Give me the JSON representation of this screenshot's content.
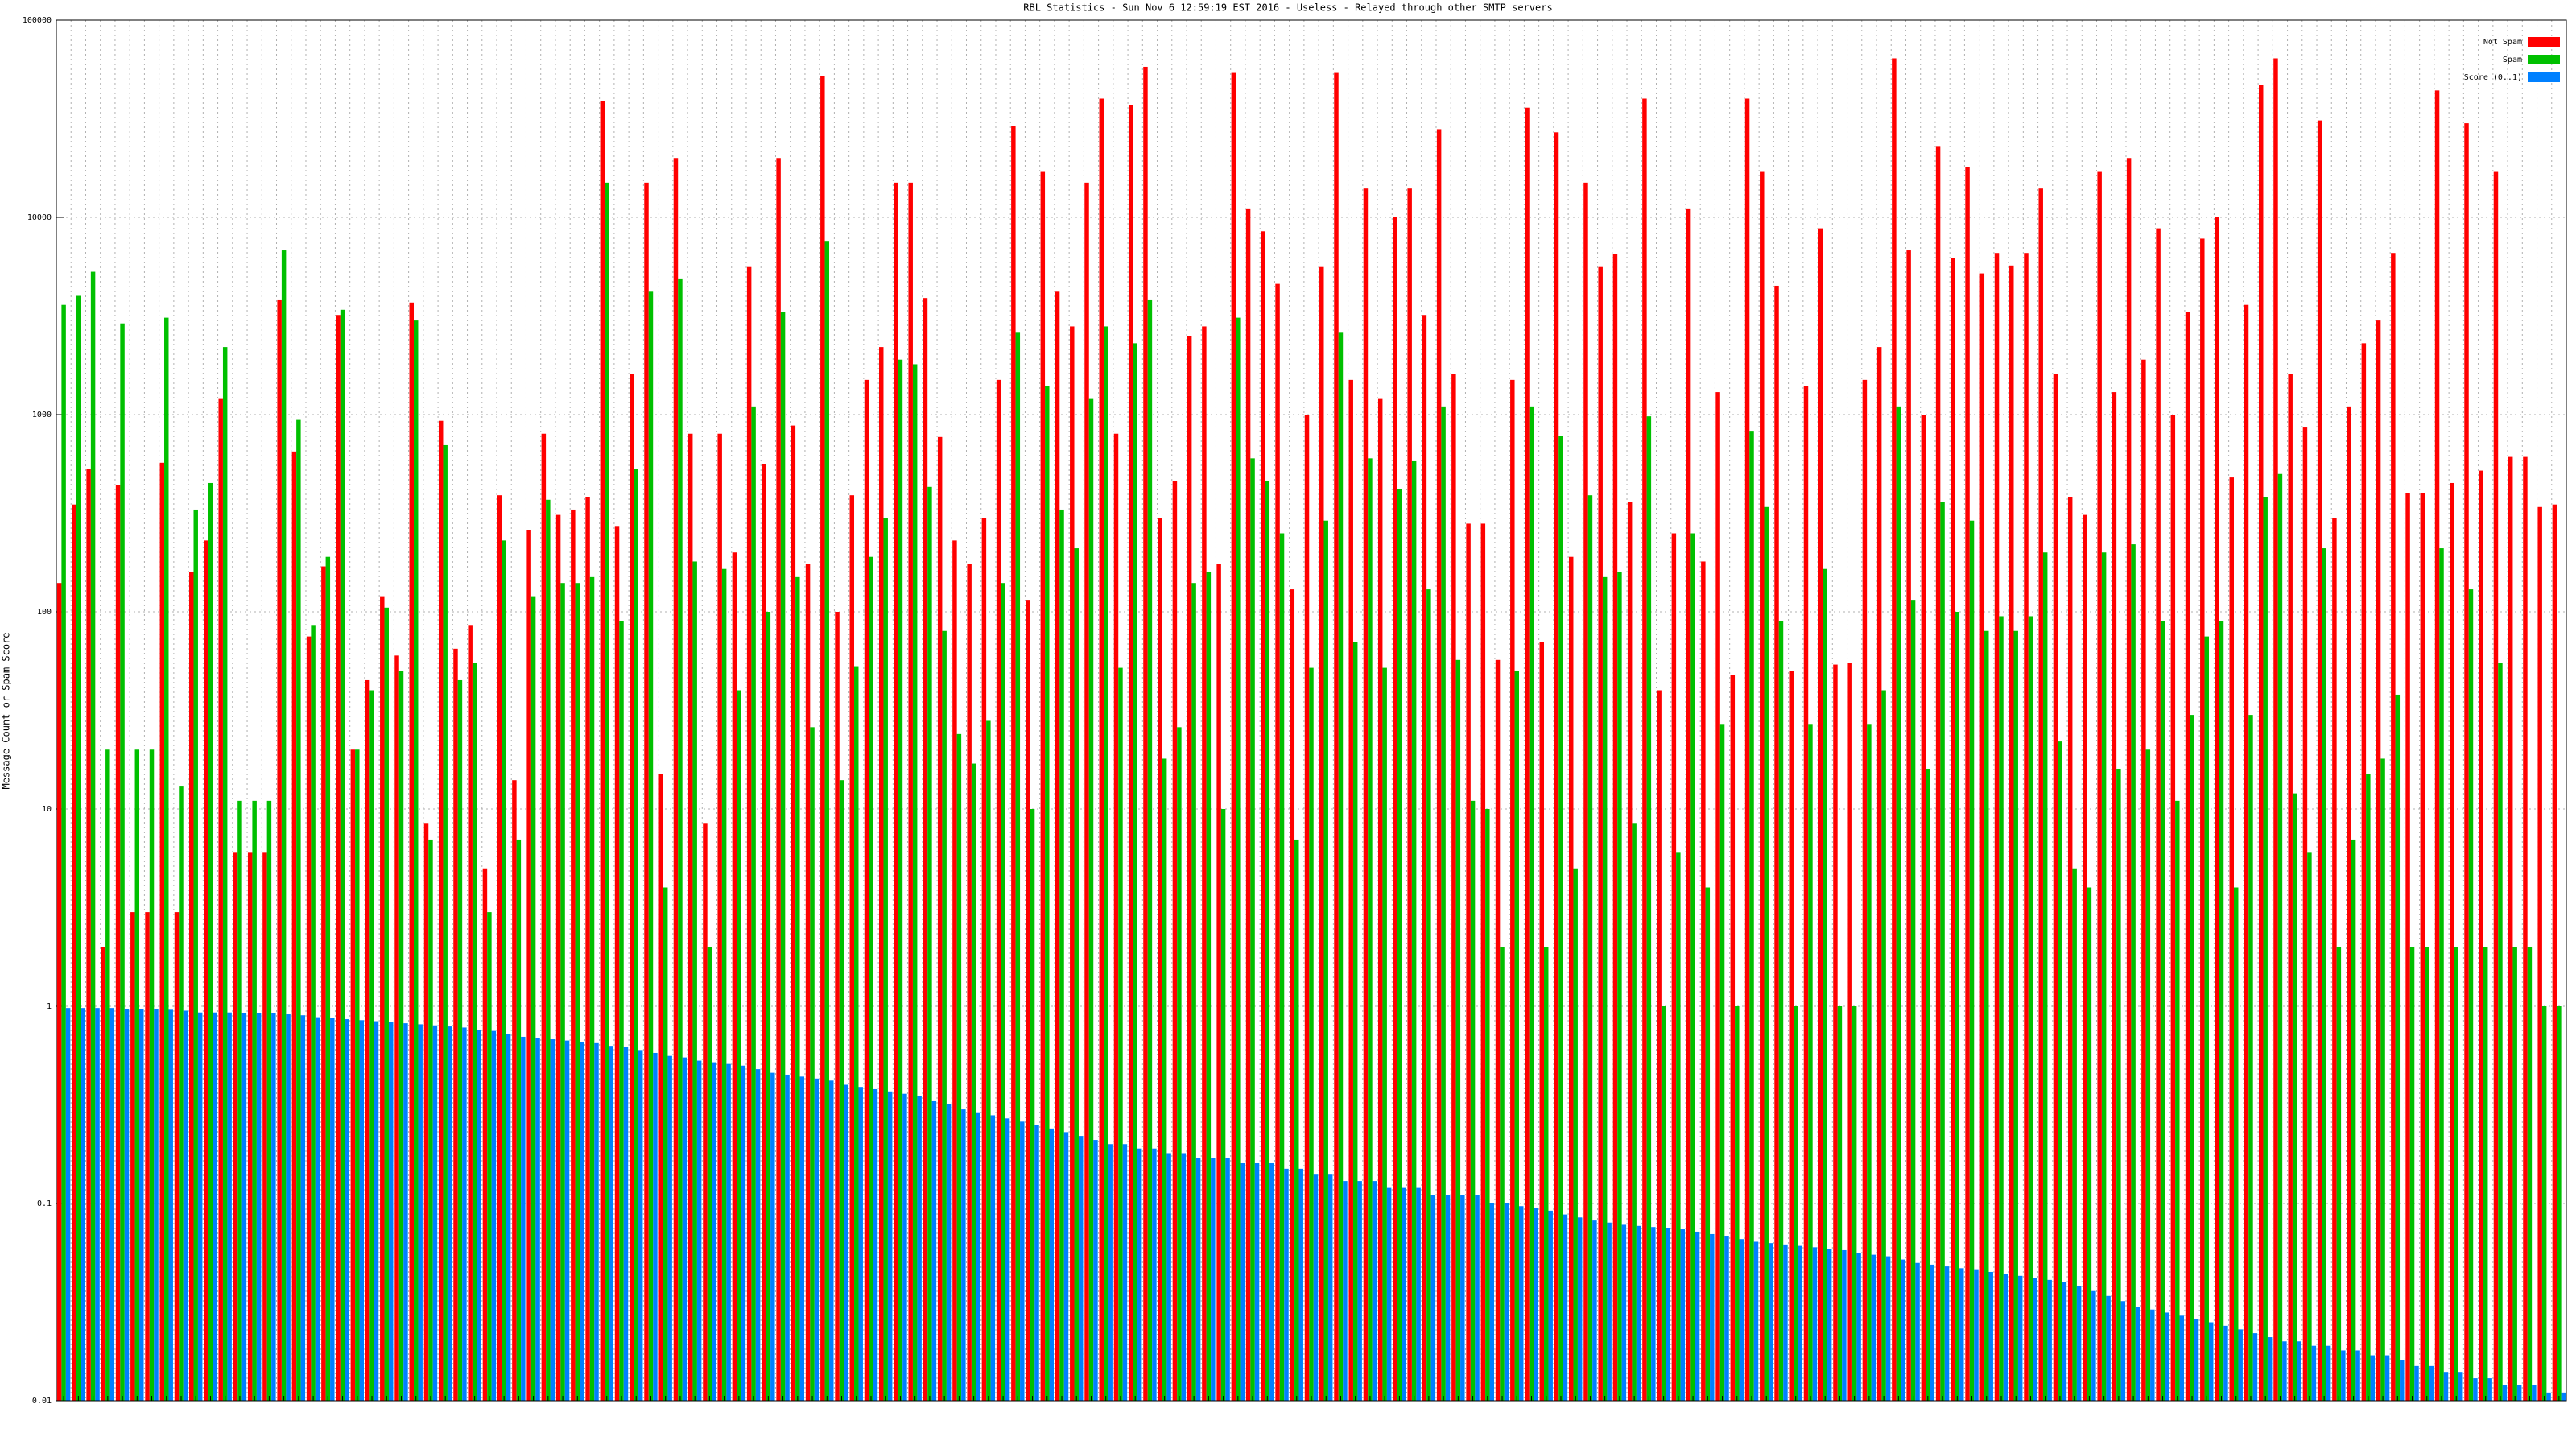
{
  "chart_data": {
    "type": "bar",
    "title": "RBL Statistics - Sun Nov  6 12:59:19 EST 2016 - Useless - Relayed through other SMTP servers",
    "y_label": "Message Count or Spam Score",
    "log_scale": true,
    "grid": true,
    "legend": "upper right",
    "ylim": [
      0.01,
      100000
    ],
    "yticks": [
      0.01,
      0.1,
      1,
      10,
      100,
      1000,
      10000,
      100000
    ],
    "categories": [
      null,
      null,
      null,
      null,
      null,
      null,
      null,
      null,
      null,
      null,
      null,
      null,
      null,
      null,
      null,
      null,
      null,
      null,
      null,
      null,
      null,
      null,
      null,
      null,
      null,
      null,
      null,
      null,
      null,
      null,
      null,
      null,
      null,
      null,
      null,
      null,
      null,
      null,
      null,
      null,
      null,
      null,
      null,
      null,
      null,
      null,
      null,
      null,
      null,
      null,
      null,
      null,
      null,
      null,
      null,
      null,
      null,
      null,
      null,
      null,
      null,
      null,
      null,
      null,
      null,
      null,
      null,
      null,
      null,
      null,
      null,
      null,
      null,
      null,
      null,
      null,
      null,
      null,
      null,
      null,
      null,
      null,
      null,
      null,
      null,
      null,
      null,
      null,
      null,
      null,
      null,
      null,
      null,
      null,
      null,
      null,
      null,
      null,
      null,
      null,
      null,
      null,
      null,
      null,
      null,
      null,
      null,
      null,
      null,
      null,
      null,
      null,
      null,
      null,
      null,
      null,
      null,
      null,
      null,
      null,
      null,
      null,
      null,
      null,
      null,
      null,
      null,
      null,
      null,
      null,
      null,
      null,
      null,
      null,
      null,
      null,
      null,
      null,
      null,
      null,
      null,
      null,
      null,
      null,
      null,
      null,
      null,
      null,
      null,
      null,
      null,
      null,
      null,
      null,
      null,
      null,
      null,
      null,
      null,
      null,
      null,
      null,
      null,
      null,
      null,
      null,
      null,
      null,
      null,
      null,
      null
    ],
    "series": [
      {
        "name": "Not Spam",
        "color": "#ff0000",
        "values": [
          140,
          350,
          530,
          2,
          440,
          3,
          3,
          570,
          3,
          160,
          230,
          1200,
          6,
          6,
          6,
          3800,
          650,
          75,
          170,
          3200,
          20,
          45,
          120,
          60,
          3700,
          8.5,
          930,
          65,
          85,
          5,
          390,
          14,
          260,
          800,
          310,
          330,
          380,
          39000,
          270,
          1600,
          15000,
          15,
          20000,
          800,
          8.5,
          800,
          200,
          5600,
          560,
          20000,
          880,
          175,
          52000,
          100,
          390,
          1500,
          2200,
          15000,
          15000,
          3900,
          770,
          230,
          175,
          300,
          1500,
          29000,
          115,
          17000,
          4200,
          2800,
          15000,
          40000,
          800,
          37000,
          58000,
          300,
          460,
          2500,
          2800,
          175,
          54000,
          11000,
          8500,
          4600,
          130,
          1000,
          5600,
          54000,
          1500,
          14000,
          1200,
          10000,
          14000,
          3200,
          28000,
          1600,
          280,
          280,
          57,
          1500,
          36000,
          70,
          27000,
          190,
          15000,
          5600,
          6500,
          360,
          40000,
          40,
          250,
          11000,
          180,
          1300,
          48,
          40000,
          17000,
          4500,
          50,
          1400,
          8800,
          54,
          55,
          1500,
          2200,
          64000,
          6800,
          1000,
          23000,
          6200,
          18000,
          5200,
          6600,
          5700,
          6600,
          14000,
          1600,
          380,
          310,
          17000,
          1300,
          20000,
          1900,
          8800,
          1000,
          3300,
          7800,
          10000,
          480,
          3600,
          47000,
          64000,
          1600,
          860,
          31000,
          300,
          1100,
          2300,
          3000,
          6600,
          400,
          400,
          44000,
          450,
          30000,
          520,
          17000,
          610,
          610,
          340,
          350
        ]
      },
      {
        "name": "Spam",
        "color": "#00c000",
        "values": [
          3600,
          4000,
          5300,
          20,
          2900,
          20,
          20,
          3100,
          13,
          330,
          450,
          2200,
          11,
          11,
          11,
          6800,
          940,
          85,
          190,
          3400,
          20,
          40,
          105,
          50,
          3000,
          7,
          700,
          45,
          55,
          3,
          230,
          7,
          120,
          370,
          140,
          140,
          150,
          15000,
          90,
          530,
          4200,
          4,
          4900,
          180,
          2,
          165,
          40,
          1100,
          100,
          3300,
          150,
          26,
          7600,
          14,
          53,
          190,
          300,
          1900,
          1800,
          430,
          80,
          24,
          17,
          28,
          140,
          2600,
          10,
          1400,
          330,
          210,
          1200,
          2800,
          52,
          2300,
          3800,
          18,
          26,
          140,
          160,
          10,
          3100,
          600,
          460,
          250,
          7,
          52,
          290,
          2600,
          70,
          600,
          52,
          420,
          580,
          130,
          1100,
          57,
          11,
          10,
          2,
          50,
          1100,
          2,
          780,
          5,
          390,
          150,
          160,
          8.5,
          980,
          1,
          6,
          250,
          4,
          27,
          1,
          820,
          340,
          90,
          1,
          27,
          165,
          1,
          1,
          27,
          40,
          1100,
          115,
          16,
          360,
          100,
          290,
          80,
          95,
          80,
          95,
          200,
          22,
          5,
          4,
          200,
          16,
          220,
          20,
          90,
          11,
          30,
          75,
          90,
          4,
          30,
          380,
          500,
          12,
          6,
          210,
          2,
          7,
          15,
          18,
          38,
          2,
          2,
          210,
          2,
          130,
          2,
          55,
          2,
          2,
          1,
          1
        ]
      },
      {
        "name": "Score (0..1)",
        "color": "#0080ff",
        "values": [
          0.98,
          0.98,
          0.98,
          0.98,
          0.97,
          0.97,
          0.97,
          0.96,
          0.95,
          0.93,
          0.93,
          0.93,
          0.92,
          0.92,
          0.92,
          0.91,
          0.9,
          0.88,
          0.87,
          0.86,
          0.85,
          0.84,
          0.83,
          0.82,
          0.81,
          0.8,
          0.79,
          0.78,
          0.76,
          0.75,
          0.72,
          0.7,
          0.69,
          0.68,
          0.67,
          0.66,
          0.65,
          0.63,
          0.62,
          0.6,
          0.58,
          0.56,
          0.55,
          0.53,
          0.52,
          0.51,
          0.5,
          0.48,
          0.46,
          0.45,
          0.44,
          0.43,
          0.42,
          0.4,
          0.39,
          0.38,
          0.37,
          0.36,
          0.35,
          0.33,
          0.32,
          0.3,
          0.29,
          0.28,
          0.27,
          0.26,
          0.25,
          0.24,
          0.23,
          0.22,
          0.21,
          0.2,
          0.2,
          0.19,
          0.19,
          0.18,
          0.18,
          0.17,
          0.17,
          0.17,
          0.16,
          0.16,
          0.16,
          0.15,
          0.15,
          0.14,
          0.14,
          0.13,
          0.13,
          0.13,
          0.12,
          0.12,
          0.12,
          0.11,
          0.11,
          0.11,
          0.11,
          0.1,
          0.1,
          0.097,
          0.095,
          0.092,
          0.088,
          0.085,
          0.082,
          0.08,
          0.078,
          0.077,
          0.076,
          0.075,
          0.074,
          0.072,
          0.07,
          0.068,
          0.066,
          0.064,
          0.063,
          0.062,
          0.061,
          0.06,
          0.059,
          0.058,
          0.056,
          0.055,
          0.054,
          0.052,
          0.05,
          0.049,
          0.048,
          0.047,
          0.046,
          0.045,
          0.044,
          0.043,
          0.042,
          0.041,
          0.04,
          0.038,
          0.036,
          0.034,
          0.032,
          0.03,
          0.029,
          0.028,
          0.027,
          0.026,
          0.025,
          0.024,
          0.023,
          0.022,
          0.021,
          0.02,
          0.02,
          0.019,
          0.019,
          0.018,
          0.018,
          0.017,
          0.017,
          0.016,
          0.015,
          0.015,
          0.014,
          0.014,
          0.013,
          0.013,
          0.012,
          0.012,
          0.012,
          0.011,
          0.011
        ]
      }
    ]
  }
}
